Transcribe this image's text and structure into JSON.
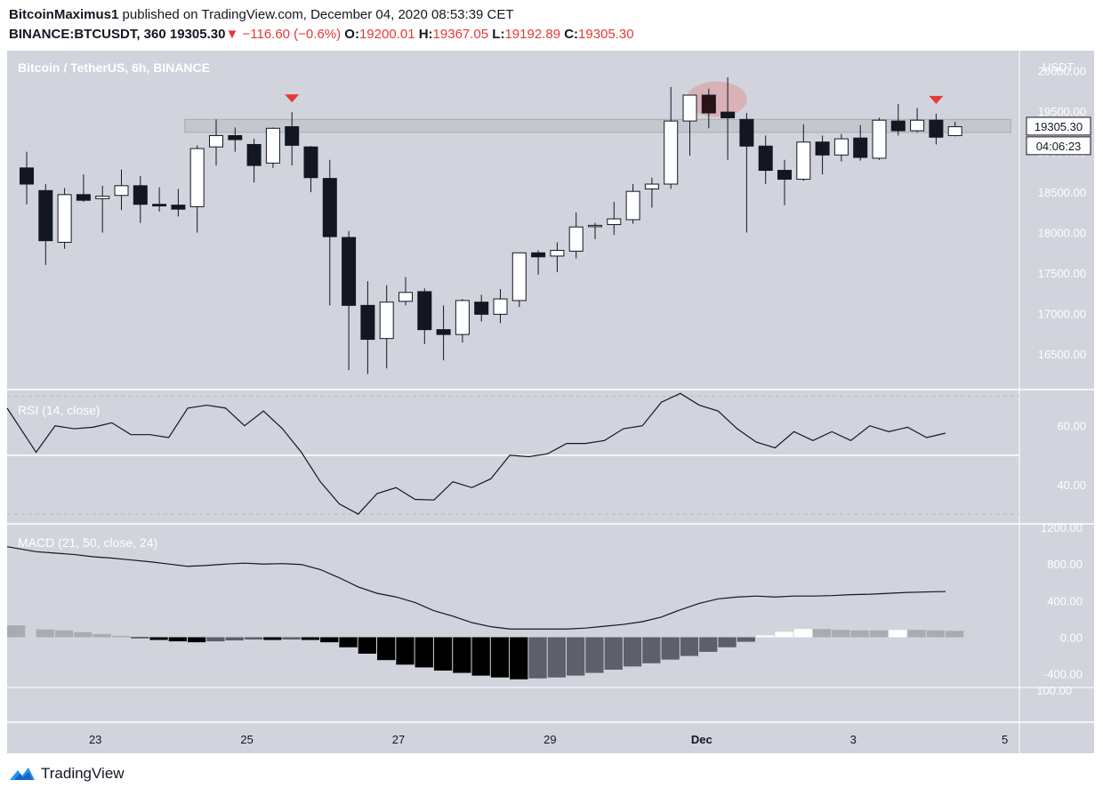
{
  "header": {
    "author": "BitcoinMaximus1",
    "published_text": "published on TradingView.com, December 04, 2020 08:53:39 CET",
    "symbol": "BINANCE:BTCUSDT, 360",
    "last": "19305.30",
    "change": "−116.60 (−0.6%)",
    "o_label": "O:",
    "o": "19200.01",
    "h_label": "H:",
    "h": "19367.05",
    "l_label": "L:",
    "l": "19192.89",
    "c_label": "C:",
    "c": "19305.30"
  },
  "brand": "TradingView",
  "chart_data": [
    {
      "type": "candlestick",
      "title": "Bitcoin / TetherUS, 6h, BINANCE",
      "currency_label": "USDT",
      "y_ticks": [
        16500,
        17000,
        17500,
        18000,
        18500,
        19000,
        19500,
        20000
      ],
      "y_tick_labels": [
        "16500.00",
        "17000.00",
        "17500.00",
        "18000.00",
        "18500.00",
        "19000.00",
        "19500.00",
        "20000.00"
      ],
      "ylim": [
        16070,
        20250
      ],
      "x_ticks": [
        {
          "label": "23",
          "index": 4
        },
        {
          "label": "25",
          "index": 12
        },
        {
          "label": "27",
          "index": 20
        },
        {
          "label": "29",
          "index": 28
        },
        {
          "label": "Dec",
          "index": 36
        },
        {
          "label": "3",
          "index": 44
        },
        {
          "label": "5",
          "index": 52
        }
      ],
      "last_price_label": "19305.30",
      "countdown_label": "04:06:23",
      "resistance_zone": [
        19240,
        19400
      ],
      "candles": [
        {
          "o": 18800,
          "h": 19000,
          "l": 18350,
          "c": 18600
        },
        {
          "o": 18520,
          "h": 18600,
          "l": 17600,
          "c": 17900
        },
        {
          "o": 17880,
          "h": 18550,
          "l": 17800,
          "c": 18470
        },
        {
          "o": 18470,
          "h": 18720,
          "l": 18380,
          "c": 18400
        },
        {
          "o": 18420,
          "h": 18580,
          "l": 18000,
          "c": 18450
        },
        {
          "o": 18460,
          "h": 18780,
          "l": 18280,
          "c": 18580
        },
        {
          "o": 18580,
          "h": 18700,
          "l": 18120,
          "c": 18350
        },
        {
          "o": 18350,
          "h": 18560,
          "l": 18260,
          "c": 18330
        },
        {
          "o": 18340,
          "h": 18540,
          "l": 18200,
          "c": 18290
        },
        {
          "o": 18320,
          "h": 19080,
          "l": 18000,
          "c": 19040
        },
        {
          "o": 19060,
          "h": 19400,
          "l": 18830,
          "c": 19200
        },
        {
          "o": 19200,
          "h": 19300,
          "l": 19000,
          "c": 19150
        },
        {
          "o": 19090,
          "h": 19160,
          "l": 18620,
          "c": 18830
        },
        {
          "o": 18860,
          "h": 19300,
          "l": 18800,
          "c": 19290
        },
        {
          "o": 19310,
          "h": 19490,
          "l": 18830,
          "c": 19080
        },
        {
          "o": 19060,
          "h": 19070,
          "l": 18500,
          "c": 18680
        },
        {
          "o": 18670,
          "h": 18900,
          "l": 17100,
          "c": 17950
        },
        {
          "o": 17940,
          "h": 18020,
          "l": 16300,
          "c": 17100
        },
        {
          "o": 17100,
          "h": 17400,
          "l": 16250,
          "c": 16680
        },
        {
          "o": 16690,
          "h": 17350,
          "l": 16320,
          "c": 17140
        },
        {
          "o": 17150,
          "h": 17450,
          "l": 17100,
          "c": 17260
        },
        {
          "o": 17270,
          "h": 17310,
          "l": 16620,
          "c": 16800
        },
        {
          "o": 16800,
          "h": 17100,
          "l": 16420,
          "c": 16740
        },
        {
          "o": 16740,
          "h": 17180,
          "l": 16640,
          "c": 17160
        },
        {
          "o": 17140,
          "h": 17230,
          "l": 16900,
          "c": 16990
        },
        {
          "o": 16990,
          "h": 17300,
          "l": 16880,
          "c": 17180
        },
        {
          "o": 17160,
          "h": 17750,
          "l": 17080,
          "c": 17750
        },
        {
          "o": 17750,
          "h": 17780,
          "l": 17480,
          "c": 17700
        },
        {
          "o": 17710,
          "h": 17880,
          "l": 17510,
          "c": 17780
        },
        {
          "o": 17770,
          "h": 18250,
          "l": 17680,
          "c": 18070
        },
        {
          "o": 18080,
          "h": 18120,
          "l": 17920,
          "c": 18090
        },
        {
          "o": 18100,
          "h": 18380,
          "l": 17970,
          "c": 18170
        },
        {
          "o": 18160,
          "h": 18600,
          "l": 18110,
          "c": 18510
        },
        {
          "o": 18540,
          "h": 18680,
          "l": 18310,
          "c": 18600
        },
        {
          "o": 18600,
          "h": 19800,
          "l": 18540,
          "c": 19380
        },
        {
          "o": 19380,
          "h": 19700,
          "l": 18950,
          "c": 19700
        },
        {
          "o": 19700,
          "h": 19780,
          "l": 19290,
          "c": 19480
        },
        {
          "o": 19490,
          "h": 19920,
          "l": 18900,
          "c": 19420
        },
        {
          "o": 19400,
          "h": 19480,
          "l": 18000,
          "c": 19070
        },
        {
          "o": 19070,
          "h": 19200,
          "l": 18600,
          "c": 18770
        },
        {
          "o": 18770,
          "h": 18900,
          "l": 18340,
          "c": 18660
        },
        {
          "o": 18660,
          "h": 19340,
          "l": 18640,
          "c": 19120
        },
        {
          "o": 19120,
          "h": 19200,
          "l": 18720,
          "c": 18960
        },
        {
          "o": 18960,
          "h": 19220,
          "l": 18880,
          "c": 19160
        },
        {
          "o": 19170,
          "h": 19330,
          "l": 18890,
          "c": 18930
        },
        {
          "o": 18920,
          "h": 19420,
          "l": 18900,
          "c": 19390
        },
        {
          "o": 19380,
          "h": 19590,
          "l": 19200,
          "c": 19260
        },
        {
          "o": 19260,
          "h": 19540,
          "l": 19240,
          "c": 19390
        },
        {
          "o": 19390,
          "h": 19470,
          "l": 19090,
          "c": 19180
        },
        {
          "o": 19200,
          "h": 19370,
          "l": 19190,
          "c": 19310
        }
      ],
      "sell_markers": [
        14,
        48
      ],
      "highlight_candle": 36
    },
    {
      "type": "line",
      "title": "RSI (14, close)",
      "y_ticks": [
        40,
        60
      ],
      "y_tick_labels": [
        "40.00",
        "60.00"
      ],
      "ylim": [
        27,
        72
      ],
      "bands": [
        30,
        70
      ],
      "midline": 50,
      "values": [
        66,
        51,
        60,
        59,
        59.5,
        61,
        57,
        57,
        56,
        66,
        67,
        66,
        60,
        65,
        59,
        51,
        41,
        33.5,
        30,
        37,
        39,
        35,
        34.8,
        41,
        39,
        42,
        50,
        49.5,
        50.5,
        54,
        54,
        55,
        59,
        60,
        68,
        71,
        67,
        65,
        59,
        54.5,
        52.5,
        58,
        55,
        58,
        55,
        60,
        58,
        59.5,
        56,
        57.5
      ]
    },
    {
      "type": "bar",
      "title": "MACD (21, 50, close, 24)",
      "y_ticks": [
        -400,
        0,
        400,
        800,
        1200
      ],
      "y_tick_labels": [
        "-400.00",
        "0.00",
        "400.00",
        "800.00",
        "1200.00"
      ],
      "ylim": [
        -540,
        1230
      ],
      "threshold_label": "100.00",
      "macd_line": [
        990,
        935,
        920,
        905,
        880,
        865,
        845,
        825,
        800,
        775,
        785,
        800,
        810,
        800,
        805,
        795,
        740,
        650,
        550,
        480,
        440,
        380,
        290,
        230,
        160,
        115,
        90,
        90,
        90,
        90,
        100,
        120,
        140,
        170,
        220,
        300,
        370,
        420,
        440,
        450,
        440,
        450,
        450,
        455,
        465,
        470,
        480,
        490,
        495,
        500
      ],
      "histogram": [
        130,
        85,
        75,
        55,
        35,
        15,
        -5,
        -30,
        -45,
        -55,
        -45,
        -35,
        -25,
        -30,
        -25,
        -30,
        -55,
        -110,
        -180,
        -250,
        -300,
        -330,
        -365,
        -390,
        -420,
        -440,
        -460,
        -450,
        -440,
        -420,
        -390,
        -355,
        -320,
        -285,
        -245,
        -205,
        -160,
        -110,
        -50,
        20,
        60,
        90,
        90,
        80,
        75,
        75,
        80,
        80,
        75,
        70
      ]
    }
  ]
}
